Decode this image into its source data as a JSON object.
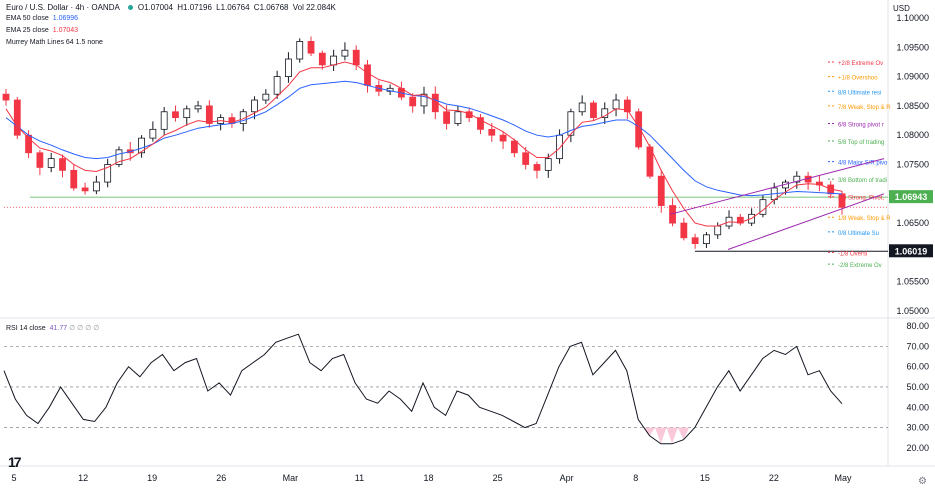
{
  "header": {
    "title": "Euro / U.S. Dollar · 4h · OANDA",
    "ohlc": [
      {
        "k": "O",
        "v": "1.07004"
      },
      {
        "k": "H",
        "v": "1.07196"
      },
      {
        "k": "L",
        "v": "1.06764"
      },
      {
        "k": "C",
        "v": "1.06768"
      }
    ],
    "vol": "Vol 22.084K",
    "currency": "USD"
  },
  "indicators": [
    {
      "label": "EMA 50 close",
      "value": "1.06996"
    },
    {
      "label": "EMA 25 close",
      "value": "1.07043"
    },
    {
      "label": "Murrey Math Lines 64 1.5 none",
      "value": ""
    }
  ],
  "colors": {
    "up": "#131722",
    "down": "#f23645",
    "ema50": "#2962ff",
    "ema25": "#f23645",
    "channel": "#9c27b0",
    "rsi": "#131722",
    "support": "#4caf50",
    "grid": "#e0e3eb",
    "accent_green": "#4caf50"
  },
  "chart_data": [
    {
      "type": "candlestick",
      "title": "Euro / U.S. Dollar · 4h · OANDA",
      "ylim": [
        1.05,
        1.1
      ],
      "y_ticks": [
        "1.10000",
        "1.09500",
        "1.09000",
        "1.08500",
        "1.08000",
        "1.07500",
        "1.07000",
        "1.06500",
        "1.06000",
        "1.05500",
        "1.05000"
      ],
      "x_ticks": [
        "5",
        "12",
        "19",
        "26",
        "Mar",
        "11",
        "18",
        "25",
        "Apr",
        "8",
        "15",
        "22",
        "May"
      ],
      "price_labels": [
        {
          "value": 1.06943,
          "text": "1.06943",
          "color": "#4caf50"
        },
        {
          "value": 1.06019,
          "text": "1.06019",
          "color": "#131722"
        }
      ],
      "support_level": 1.06943,
      "low_level": 1.06019,
      "murrey_lines": [
        {
          "label": "+2/8 Extreme Ov",
          "value": 1.0925
        },
        {
          "label": "+1/8 Overshoo",
          "value": 1.09
        },
        {
          "label": "8/8 Ultimate resi",
          "value": 1.0875
        },
        {
          "label": "7/8 Weak, Stop & R",
          "value": 1.085
        },
        {
          "label": "6/8 Strong pivot r",
          "value": 1.082
        },
        {
          "label": "5/8 Top of trading",
          "value": 1.079
        },
        {
          "label": "4/8 Major S/R pivo",
          "value": 1.0755
        },
        {
          "label": "3/8 Bottom of tradi",
          "value": 1.0725
        },
        {
          "label": "2/8 Strong, Pivot,",
          "value": 1.0695
        },
        {
          "label": "1/8 Weak, Stop & R",
          "value": 1.066
        },
        {
          "label": "0/8 Ultimate Su",
          "value": 1.0635
        },
        {
          "label": "-1/8 Oversl",
          "value": 1.06
        },
        {
          "label": "-2/8 Extreme Ov",
          "value": 1.058
        }
      ],
      "close_path": [
        1.086,
        1.08,
        1.077,
        1.0745,
        1.076,
        1.074,
        1.071,
        1.0705,
        1.072,
        1.075,
        1.0775,
        1.077,
        1.0795,
        1.081,
        1.084,
        1.083,
        1.0845,
        1.085,
        1.082,
        1.083,
        1.082,
        1.084,
        1.086,
        1.087,
        1.09,
        1.093,
        1.096,
        1.094,
        1.092,
        1.0935,
        1.0945,
        1.092,
        1.0885,
        1.0875,
        1.088,
        1.0865,
        1.085,
        1.087,
        1.084,
        1.082,
        1.084,
        1.083,
        1.081,
        1.08,
        1.079,
        1.077,
        1.075,
        1.074,
        1.076,
        1.08,
        1.084,
        1.0855,
        1.083,
        1.0845,
        1.086,
        1.084,
        1.078,
        1.073,
        1.068,
        1.065,
        1.0625,
        1.0615,
        1.063,
        1.0645,
        1.066,
        1.065,
        1.0665,
        1.069,
        1.071,
        1.072,
        1.073,
        1.072,
        1.0715,
        1.07,
        1.0677
      ],
      "ema50_path": [
        1.083,
        1.0815,
        1.08,
        1.079,
        1.0783,
        1.0775,
        1.0768,
        1.0762,
        1.076,
        1.0762,
        1.0768,
        1.0772,
        1.0778,
        1.0785,
        1.0795,
        1.08,
        1.0806,
        1.0812,
        1.0815,
        1.0818,
        1.082,
        1.0825,
        1.0832,
        1.084,
        1.0852,
        1.0865,
        1.088,
        1.0886,
        1.0888,
        1.089,
        1.0892,
        1.089,
        1.0885,
        1.088,
        1.0876,
        1.0872,
        1.0868,
        1.0866,
        1.086,
        1.0853,
        1.085,
        1.0846,
        1.084,
        1.0833,
        1.0826,
        1.0817,
        1.0807,
        1.08,
        1.0797,
        1.08,
        1.0808,
        1.0815,
        1.0818,
        1.0822,
        1.0826,
        1.0826,
        1.0815,
        1.08,
        1.078,
        1.076,
        1.074,
        1.0722,
        1.0712,
        1.0706,
        1.0702,
        1.0698,
        1.0697,
        1.0698,
        1.07,
        1.0702,
        1.0704,
        1.0703,
        1.0702,
        1.0701,
        1.06996
      ],
      "ema25_path": [
        1.0845,
        1.0815,
        1.0795,
        1.0778,
        1.0773,
        1.0765,
        1.075,
        1.074,
        1.0738,
        1.0745,
        1.0755,
        1.076,
        1.0772,
        1.0785,
        1.08,
        1.0808,
        1.0818,
        1.0825,
        1.0822,
        1.0825,
        1.0822,
        1.0828,
        1.0838,
        1.0848,
        1.0866,
        1.0885,
        1.0908,
        1.0915,
        1.0915,
        1.092,
        1.0925,
        1.092,
        1.0906,
        1.0895,
        1.089,
        1.088,
        1.0868,
        1.0869,
        1.0858,
        1.0843,
        1.0842,
        1.0837,
        1.0826,
        1.0816,
        1.0806,
        1.0792,
        1.0775,
        1.0762,
        1.0762,
        1.0778,
        1.0802,
        1.0822,
        1.0825,
        1.0833,
        1.0845,
        1.0843,
        1.0815,
        1.078,
        1.074,
        1.0705,
        1.0675,
        1.065,
        1.0645,
        1.0645,
        1.0652,
        1.0651,
        1.0658,
        1.0672,
        1.069,
        1.0703,
        1.0715,
        1.0717,
        1.0716,
        1.0708,
        1.07043
      ]
    },
    {
      "type": "line",
      "title": "RSI 14 close",
      "value_label": "41.77",
      "ylim": [
        15,
        82
      ],
      "y_ticks": [
        "80.00",
        "70.00",
        "60.00",
        "50.00",
        "40.00",
        "30.00",
        "20.00"
      ],
      "bands": [
        70,
        50,
        30
      ],
      "values": [
        58,
        44,
        36,
        32,
        40,
        50,
        42,
        34,
        33,
        40,
        52,
        60,
        55,
        62,
        66,
        58,
        62,
        64,
        48,
        52,
        46,
        58,
        62,
        66,
        72,
        74,
        76,
        62,
        58,
        64,
        66,
        52,
        44,
        42,
        48,
        44,
        38,
        52,
        40,
        36,
        48,
        46,
        40,
        38,
        36,
        33,
        30,
        32,
        46,
        60,
        70,
        72,
        56,
        62,
        68,
        58,
        34,
        26,
        22,
        22,
        24,
        30,
        40,
        50,
        58,
        48,
        56,
        64,
        68,
        66,
        70,
        56,
        58,
        48,
        41.77
      ]
    }
  ]
}
